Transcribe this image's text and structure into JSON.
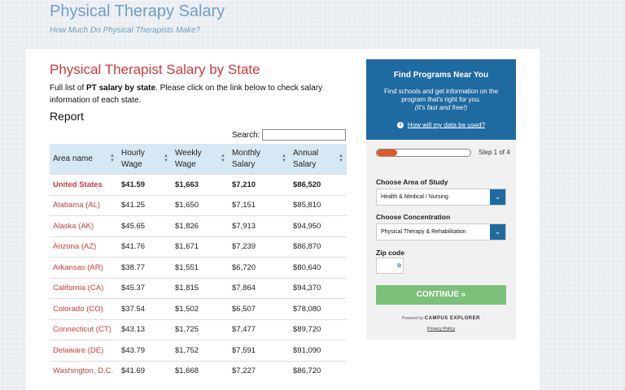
{
  "site": {
    "title": "Physical Therapy Salary",
    "subtitle": "How Much Do Physical Therapists Make?"
  },
  "main": {
    "heading": "Physical Therapist Salary by State",
    "intro_before": "Full list of ",
    "intro_bold": "PT salary by state",
    "intro_after": ". Please click on the link below to check salary information of each state.",
    "report_heading": "Report",
    "search_label": "Search:",
    "search_value": ""
  },
  "table": {
    "headers": [
      "Area name",
      "Hourly Wage",
      "Weekly Wage",
      "Monthly Salary",
      "Annual Salary"
    ],
    "rows": [
      [
        "United States",
        "$41.59",
        "$1,663",
        "$7,210",
        "$86,520"
      ],
      [
        "Alabama (AL)",
        "$41.25",
        "$1,650",
        "$7,151",
        "$85,810"
      ],
      [
        "Alaska (AK)",
        "$45.65",
        "$1,826",
        "$7,913",
        "$94,950"
      ],
      [
        "Arizona (AZ)",
        "$41.76",
        "$1,671",
        "$7,239",
        "$86,870"
      ],
      [
        "Arkansas (AR)",
        "$38.77",
        "$1,551",
        "$6,720",
        "$80,640"
      ],
      [
        "California (CA)",
        "$45.37",
        "$1,815",
        "$7,864",
        "$94,370"
      ],
      [
        "Colorado (CO)",
        "$37.54",
        "$1,502",
        "$6,507",
        "$78,080"
      ],
      [
        "Connecticut (CT)",
        "$43.13",
        "$1,725",
        "$7,477",
        "$89,720"
      ],
      [
        "Delaware (DE)",
        "$43.79",
        "$1,752",
        "$7,591",
        "$91,090"
      ],
      [
        "Washington, D.C.",
        "$41.69",
        "$1,668",
        "$7,227",
        "$86,720"
      ]
    ]
  },
  "sidebar": {
    "title": "Find Programs Near You",
    "description": "Find schools and get information on the program that's right for you.",
    "description_italic": "(It's fast and free!)",
    "info_link": "How will my data be used?",
    "progress": 0.22,
    "step": "Step 1 of 4",
    "area_label": "Choose Area of Study",
    "area_value": "Health & Medical / Nursing",
    "concentration_label": "Choose Concentration",
    "concentration_value": "Physical Therapy & Rehabilitation",
    "zip_label": "Zip code",
    "continue_label": "CONTINUE",
    "powered_by": "Powered by",
    "powered_brand": "CAMPUS EXPLORER",
    "privacy": "Privacy Policy"
  }
}
